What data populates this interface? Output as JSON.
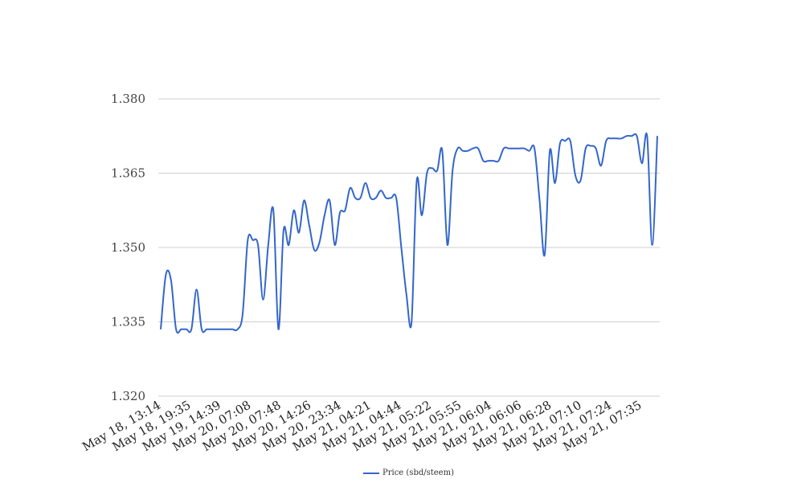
{
  "colors": {
    "series": "#3366CC",
    "grid": "#cfcfcf",
    "background": "#ffffff"
  },
  "chart_data": {
    "type": "line",
    "title": "",
    "xlabel": "",
    "ylabel": "",
    "ylim": [
      1.32,
      1.38
    ],
    "yticks": [
      "1.320",
      "1.335",
      "1.350",
      "1.365",
      "1.380"
    ],
    "ytick_values": [
      1.32,
      1.335,
      1.35,
      1.365,
      1.38
    ],
    "xtick_labels": [
      "May 18, 13:14",
      "May 18, 19:35",
      "May 19, 14:39",
      "May 20, 07:08",
      "May 20, 07:48",
      "May 20, 14:26",
      "May 20, 23:34",
      "May 21, 04:21",
      "May 21, 04:44",
      "May 21, 05:22",
      "May 21, 05:55",
      "May 21, 06:04",
      "May 21, 06:06",
      "May 21, 06:28",
      "May 21, 07:10",
      "May 21, 07:24",
      "May 21, 07:35"
    ],
    "grid": true,
    "legend_position": "bottom",
    "series": [
      {
        "name": "Price (sbd/steem)",
        "values": [
          1.3335,
          1.3445,
          1.3435,
          1.3335,
          1.3335,
          1.3335,
          1.3335,
          1.3415,
          1.3335,
          1.3335,
          1.3335,
          1.3335,
          1.3335,
          1.3335,
          1.3335,
          1.3335,
          1.3365,
          1.3515,
          1.3515,
          1.3505,
          1.3395,
          1.3505,
          1.3575,
          1.3335,
          1.3535,
          1.3505,
          1.3575,
          1.353,
          1.3595,
          1.3545,
          1.3495,
          1.351,
          1.3565,
          1.3595,
          1.3505,
          1.357,
          1.3575,
          1.362,
          1.36,
          1.36,
          1.363,
          1.36,
          1.36,
          1.3615,
          1.36,
          1.36,
          1.36,
          1.35,
          1.3405,
          1.335,
          1.3635,
          1.3565,
          1.365,
          1.366,
          1.3655,
          1.3695,
          1.3505,
          1.3655,
          1.37,
          1.3695,
          1.3695,
          1.37,
          1.37,
          1.3675,
          1.3675,
          1.3675,
          1.3675,
          1.37,
          1.37,
          1.37,
          1.37,
          1.37,
          1.3695,
          1.37,
          1.3595,
          1.3485,
          1.3695,
          1.363,
          1.371,
          1.3715,
          1.3715,
          1.3645,
          1.3635,
          1.37,
          1.3705,
          1.37,
          1.3665,
          1.3715,
          1.372,
          1.372,
          1.372,
          1.3725,
          1.3725,
          1.3725,
          1.367,
          1.3725,
          1.3505,
          1.3725
        ]
      }
    ]
  }
}
